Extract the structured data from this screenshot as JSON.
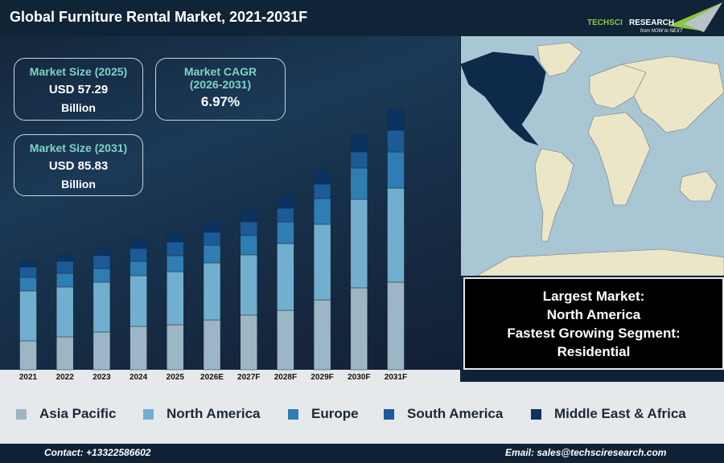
{
  "header": {
    "title": "Global Furniture Rental Market, 2021-2031F",
    "logo_text": "TECHSCI RESEARCH",
    "logo_tagline": "from NOW to NEXT"
  },
  "kpis": [
    {
      "label": "Market Size (2025)",
      "value": "USD 57.29",
      "unit": "Billion"
    },
    {
      "label": "Market CAGR (2026-2031)",
      "value": "6.97%"
    },
    {
      "label": "Market Size (2031)",
      "value": "USD 85.83",
      "unit": "Billion"
    }
  ],
  "insight": {
    "line1": "Largest Market:",
    "line2": "North America",
    "line3": "Fastest Growing Segment:",
    "line4": "Residential"
  },
  "map": {
    "highlight_region": "North America",
    "highlight_color": "#0d2a4a",
    "land_color": "#ece6c8",
    "water_color": "#a9c6d4"
  },
  "chart_data": {
    "type": "bar",
    "stacked": true,
    "title": "",
    "xlabel": "",
    "ylabel": "",
    "grid": false,
    "legend_position": "bottom",
    "y_axis_shown": false,
    "note_values": "relative bar heights estimated from the graphic (no axis printed)",
    "categories": [
      "2021",
      "2022",
      "2023",
      "2024",
      "2025",
      "2026E",
      "2027F",
      "2028F",
      "2029F",
      "2030F",
      "2031F"
    ],
    "series": [
      {
        "name": "Asia Pacific",
        "color": "#9cb6c5",
        "values": [
          36,
          41,
          47,
          54,
          56,
          62,
          68,
          74,
          87,
          102,
          109
        ]
      },
      {
        "name": "North America",
        "color": "#72afcf",
        "values": [
          62,
          62,
          62,
          63,
          66,
          71,
          75,
          83,
          94,
          110,
          117
        ]
      },
      {
        "name": "Europe",
        "color": "#2e7db3",
        "values": [
          17,
          17,
          17,
          18,
          20,
          22,
          24,
          27,
          32,
          39,
          45
        ]
      },
      {
        "name": "South America",
        "color": "#1c5a98",
        "values": [
          13,
          15,
          16,
          16,
          17,
          16,
          17,
          17,
          18,
          20,
          27
        ]
      },
      {
        "name": "Middle East & Africa",
        "color": "#0c3261",
        "values": [
          7,
          8,
          10,
          12,
          13,
          15,
          15,
          16,
          17,
          21,
          27
        ]
      }
    ],
    "ylim": [
      0,
      330
    ]
  },
  "footer": {
    "contact": "Contact: +13322586602",
    "email": "Email: sales@techsciresearch.com"
  }
}
